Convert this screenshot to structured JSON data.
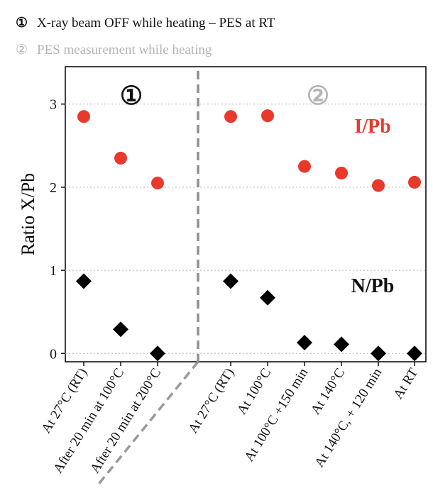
{
  "chart_data": {
    "type": "scatter",
    "legend": [
      {
        "symbol": "①",
        "text": "X-ray beam OFF while heating – PES at RT",
        "color": "#111111"
      },
      {
        "symbol": "②",
        "text": "PES measurement while heating",
        "color": "#b4b4b4"
      }
    ],
    "panels": [
      {
        "symbol": "①",
        "color": "#111111"
      },
      {
        "symbol": "②",
        "color": "#b4b4b4"
      }
    ],
    "ylabel": "Ratio X/Pb",
    "ylim": [
      -0.1,
      3.45
    ],
    "yticks": [
      0,
      1,
      2,
      3
    ],
    "grid": "horizontal-dotted",
    "categories": [
      "At 27°C (RT)",
      "After 20 min at 100°C",
      "After 20 min at 200°C",
      "At 27°C (RT)",
      "At 100°C",
      "At 100°C +150 min",
      "At 140°C",
      "At 140°C, + 120 min",
      "At RT"
    ],
    "separator_after_index": 2,
    "series": [
      {
        "name": "I/Pb",
        "marker": "circle",
        "color": "#e8392c",
        "values": [
          2.85,
          2.35,
          2.05,
          2.85,
          2.86,
          2.25,
          2.17,
          2.02,
          2.06
        ]
      },
      {
        "name": "N/Pb",
        "marker": "diamond",
        "color": "#000000",
        "values": [
          0.87,
          0.29,
          0.0,
          0.87,
          0.67,
          0.13,
          0.11,
          0.0,
          0.0
        ]
      }
    ]
  }
}
